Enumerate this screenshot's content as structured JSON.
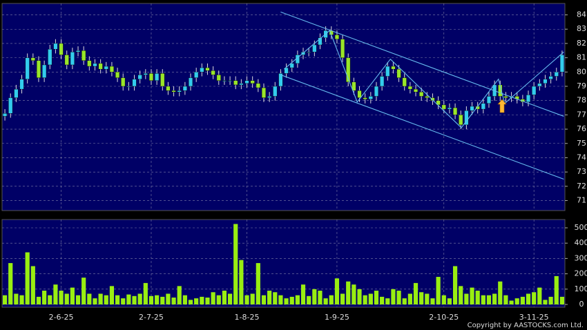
{
  "chart_data": [
    {
      "type": "candlestick",
      "categories": [
        null,
        null,
        null,
        null,
        null,
        null,
        null,
        null,
        null,
        null,
        "2-6-25",
        null,
        null,
        null,
        null,
        null,
        null,
        null,
        null,
        null,
        null,
        null,
        null,
        null,
        null,
        null,
        "2-7-25",
        null,
        null,
        null,
        null,
        null,
        null,
        null,
        null,
        null,
        null,
        null,
        null,
        null,
        null,
        null,
        null,
        "1-8-25",
        null,
        null,
        null,
        null,
        null,
        null,
        null,
        null,
        null,
        null,
        null,
        null,
        null,
        null,
        null,
        "1-9-25",
        null,
        null,
        null,
        null,
        null,
        null,
        null,
        null,
        null,
        null,
        null,
        null,
        null,
        null,
        null,
        null,
        null,
        null,
        "2-10-25",
        null,
        null,
        null,
        null,
        null,
        null,
        null,
        null,
        null,
        null,
        null,
        null,
        null,
        null,
        null,
        "3-11-25",
        null,
        null,
        null,
        null,
        null
      ],
      "open": [
        76.9,
        77.1,
        78.2,
        78.8,
        79.5,
        81,
        80.8,
        79.6,
        80.5,
        81.6,
        82,
        81.2,
        80.5,
        81.4,
        81.5,
        80.8,
        80.4,
        80.6,
        80.2,
        80.4,
        80.0,
        79.6,
        79.0,
        79.0,
        79.5,
        79.8,
        79.9,
        79.4,
        79.9,
        79.0,
        78.7,
        78.6,
        78.7,
        79.0,
        79.6,
        80.0,
        80.3,
        80.1,
        79.8,
        79.4,
        79.4,
        79.4,
        79.1,
        79.2,
        79.4,
        79.2,
        78.9,
        78.2,
        78.3,
        79.0,
        79.9,
        80.3,
        80.6,
        81.2,
        81.4,
        81.4,
        81.9,
        82.4,
        82.9,
        82.6,
        82.3,
        81.0,
        79.3,
        78.7,
        78.2,
        78.1,
        78.3,
        79.0,
        79.7,
        80.4,
        80.2,
        79.6,
        79.0,
        78.8,
        78.6,
        78.3,
        78.2,
        78.0,
        77.7,
        77.4,
        77.5,
        77.0,
        76.3,
        77.3,
        77.6,
        77.4,
        77.8,
        78.3,
        79.1,
        78.3,
        78.2,
        78.3,
        78.1,
        77.9,
        78.4,
        79.0,
        79.2,
        79.5,
        79.7,
        80.0
      ],
      "high": [
        77.4,
        78.5,
        79.1,
        79.8,
        81.3,
        81.3,
        81.1,
        80.8,
        81.9,
        82.3,
        82.3,
        81.5,
        81.7,
        81.8,
        81.8,
        81.1,
        80.9,
        80.9,
        80.7,
        80.7,
        80.3,
        79.9,
        79.3,
        79.8,
        80.1,
        80.2,
        80.2,
        80.2,
        80.2,
        79.3,
        79.0,
        79.0,
        79.3,
        79.9,
        80.3,
        80.6,
        80.6,
        80.4,
        80.1,
        79.7,
        79.7,
        79.7,
        79.5,
        79.7,
        79.7,
        79.5,
        79.2,
        78.6,
        79.3,
        80.2,
        80.6,
        80.9,
        81.5,
        81.7,
        81.7,
        82.2,
        82.7,
        83.2,
        83.2,
        82.9,
        82.6,
        81.3,
        79.6,
        79.0,
        78.5,
        78.6,
        79.3,
        80.0,
        80.7,
        80.7,
        80.5,
        79.9,
        79.3,
        79.1,
        78.9,
        78.6,
        78.5,
        78.3,
        78.0,
        77.8,
        77.8,
        77.3,
        77.6,
        77.9,
        77.9,
        78.1,
        78.6,
        79.4,
        79.4,
        78.6,
        78.6,
        78.6,
        78.4,
        78.7,
        79.3,
        79.5,
        79.8,
        80.0,
        80.3,
        81.5
      ],
      "low": [
        76.6,
        76.8,
        77.9,
        78.5,
        79.2,
        80.5,
        79.3,
        79.3,
        80.2,
        81.3,
        80.9,
        80.2,
        80.2,
        81.1,
        80.5,
        80.1,
        80.1,
        79.9,
        79.9,
        79.7,
        79.3,
        78.7,
        78.7,
        78.7,
        79.2,
        79.5,
        79.1,
        79.1,
        78.7,
        78.4,
        78.3,
        78.3,
        78.4,
        78.7,
        79.3,
        79.7,
        79.8,
        79.5,
        79.1,
        79.1,
        79.1,
        78.8,
        78.8,
        78.9,
        78.9,
        78.6,
        77.9,
        77.9,
        78.0,
        78.7,
        79.6,
        80.0,
        80.3,
        80.9,
        81.1,
        81.1,
        81.6,
        82.1,
        82.3,
        82.0,
        80.7,
        79.0,
        78.4,
        77.9,
        77.8,
        77.8,
        78.0,
        78.7,
        79.4,
        79.9,
        79.3,
        78.7,
        78.5,
        78.3,
        78.0,
        77.9,
        77.7,
        77.4,
        77.1,
        77.1,
        76.7,
        76.0,
        76.0,
        77.0,
        77.1,
        77.1,
        77.5,
        78.0,
        78.0,
        77.9,
        77.9,
        77.8,
        77.6,
        77.6,
        78.1,
        78.7,
        78.9,
        79.2,
        79.4,
        79.7
      ],
      "close": [
        77.1,
        78.2,
        78.8,
        79.5,
        81,
        80.8,
        79.6,
        80.5,
        81.6,
        82,
        81.2,
        80.5,
        81.4,
        81.5,
        80.8,
        80.4,
        80.6,
        80.2,
        80.4,
        80.0,
        79.6,
        79.0,
        79.0,
        79.5,
        79.8,
        79.9,
        79.4,
        79.9,
        79.0,
        78.7,
        78.6,
        78.7,
        79.0,
        79.6,
        80.0,
        80.3,
        80.1,
        79.8,
        79.4,
        79.4,
        79.4,
        79.1,
        79.2,
        79.4,
        79.2,
        78.9,
        78.2,
        78.3,
        79.0,
        79.9,
        80.3,
        80.6,
        81.2,
        81.4,
        81.4,
        81.9,
        82.4,
        82.9,
        82.6,
        82.3,
        81.0,
        79.3,
        78.7,
        78.2,
        78.1,
        78.3,
        79.0,
        79.7,
        80.4,
        80.2,
        79.6,
        79.0,
        78.8,
        78.6,
        78.3,
        78.2,
        78.0,
        77.7,
        77.4,
        77.5,
        77.0,
        76.3,
        77.3,
        77.6,
        77.4,
        77.8,
        78.3,
        79.1,
        78.3,
        78.2,
        78.3,
        78.1,
        77.9,
        78.4,
        79.0,
        79.2,
        79.5,
        79.7,
        80.0,
        81.2
      ],
      "up_color": "#33ccee",
      "down_color": "#99e62a",
      "background": "#000066",
      "ylim": [
        70.3,
        84.8
      ],
      "yticks": [
        71,
        72,
        73,
        74,
        75,
        76,
        77,
        78,
        79,
        80,
        81,
        82,
        83,
        84
      ],
      "grid": true,
      "lines": [
        {
          "color": "#66bbee",
          "x": [
            49,
            99.3
          ],
          "y": [
            84.2,
            76.9
          ]
        },
        {
          "color": "#66bbee",
          "x": [
            49,
            99.3
          ],
          "y": [
            79.8,
            72.5
          ]
        },
        {
          "color": "#66bbee",
          "x": [
            49.6,
            57.7,
            62.6,
            68.5,
            81.1,
            87.7,
            88.8,
            99.3
          ],
          "y": [
            80.2,
            82.9,
            77.9,
            80.9,
            76.1,
            79.5,
            77.8,
            81.4
          ]
        }
      ]
    },
    {
      "type": "bar",
      "values": [
        60,
        270,
        70,
        60,
        340,
        250,
        50,
        90,
        60,
        130,
        90,
        70,
        110,
        60,
        175,
        70,
        40,
        70,
        60,
        120,
        60,
        40,
        65,
        55,
        70,
        140,
        55,
        60,
        50,
        70,
        45,
        120,
        60,
        30,
        40,
        50,
        45,
        80,
        60,
        90,
        70,
        525,
        290,
        60,
        70,
        270,
        60,
        90,
        80,
        60,
        40,
        50,
        60,
        130,
        55,
        100,
        90,
        40,
        60,
        170,
        70,
        150,
        130,
        100,
        60,
        70,
        90,
        50,
        40,
        100,
        90,
        40,
        70,
        140,
        80,
        70,
        40,
        180,
        60,
        40,
        250,
        120,
        70,
        110,
        90,
        60,
        60,
        70,
        150,
        60,
        25,
        40,
        50,
        70,
        80,
        110,
        30,
        50,
        185,
        50
      ],
      "color": "#99ee11",
      "background": "#000066",
      "ylim": [
        -18,
        554
      ],
      "yticks": [
        0,
        100,
        200,
        300,
        400,
        500
      ],
      "grid": true,
      "credit": "Copyright by AASTOCKS.com Ltd."
    }
  ]
}
